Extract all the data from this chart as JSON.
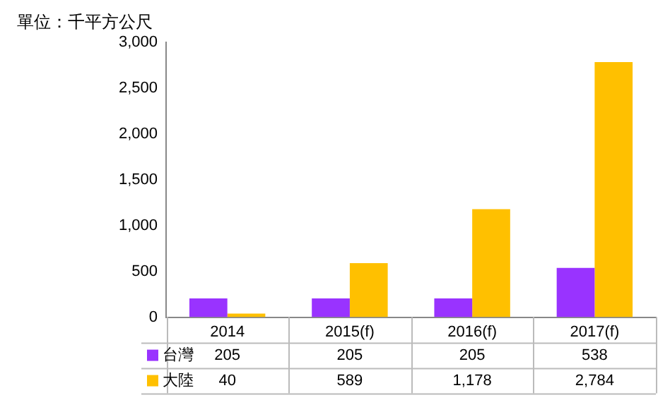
{
  "chart_data": {
    "type": "bar",
    "ylabel": "單位：千平方公尺",
    "categories": [
      "2014",
      "2015(f)",
      "2016(f)",
      "2017(f)"
    ],
    "series": [
      {
        "name": "台灣",
        "color": "#9933ff",
        "values": [
          205,
          205,
          205,
          538
        ],
        "value_labels": [
          "205",
          "205",
          "205",
          "538"
        ]
      },
      {
        "name": "大陸",
        "color": "#ffc000",
        "values": [
          40,
          589,
          1178,
          2784
        ],
        "value_labels": [
          "40",
          "589",
          "1,178",
          "2,784"
        ]
      }
    ],
    "ylim": [
      0,
      3000
    ],
    "yticks": [
      {
        "value": 0,
        "label": "0"
      },
      {
        "value": 500,
        "label": "500"
      },
      {
        "value": 1000,
        "label": "1,000"
      },
      {
        "value": 1500,
        "label": "1,500"
      },
      {
        "value": 2000,
        "label": "2,000"
      },
      {
        "value": 2500,
        "label": "2,500"
      },
      {
        "value": 3000,
        "label": "3,000"
      }
    ],
    "grid": false,
    "legend": "bottom"
  }
}
